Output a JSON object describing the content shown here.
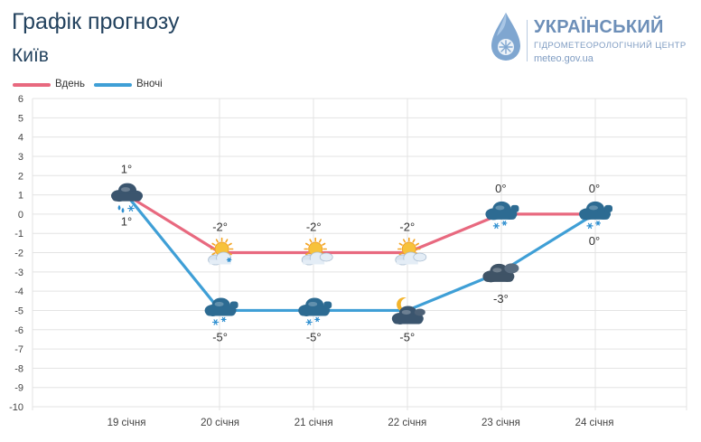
{
  "header": {
    "title": "Графік прогнозу",
    "city": "Київ"
  },
  "logo": {
    "line1": "УКРАЇНСЬКИЙ",
    "line2": "ГІДРОМЕТЕОРОЛОГІЧНИЙ ЦЕНТР",
    "line3": "meteo.gov.ua"
  },
  "legend": {
    "items": [
      {
        "label": "Вдень",
        "color": "#e8697f"
      },
      {
        "label": "Вночі",
        "color": "#3f9fd6"
      }
    ]
  },
  "chart_data": {
    "type": "line",
    "categories": [
      "19 січня",
      "20 січня",
      "21 січня",
      "22 січня",
      "23 січня",
      "24 січня"
    ],
    "ylim": [
      -10,
      6
    ],
    "yticks": [
      6,
      5,
      4,
      3,
      2,
      1,
      0,
      -1,
      -2,
      -3,
      -4,
      -5,
      -6,
      -7,
      -8,
      -9,
      -10
    ],
    "grid": true,
    "legend_position": "top-left",
    "series": [
      {
        "name": "Вдень",
        "color": "#e8697f",
        "values": [
          1,
          -2,
          -2,
          -2,
          0,
          0
        ],
        "labels": [
          "1°",
          "-2°",
          "-2°",
          "-2°",
          "0°",
          "0°"
        ],
        "icons": [
          "cloudy-rain-snow-icon",
          "partly-cloudy-snow-icon",
          "partly-cloudy-icon",
          "partly-cloudy-icon",
          "cloudy-snow-icon",
          "cloudy-snow-icon"
        ]
      },
      {
        "name": "Вночі",
        "color": "#3f9fd6",
        "values": [
          1,
          -5,
          -5,
          -5,
          -3,
          0
        ],
        "labels": [
          "1°",
          "-5°",
          "-5°",
          "-5°",
          "-3°",
          "0°"
        ],
        "icons": [
          "cloudy-rain-snow-icon",
          "cloudy-snow-icon",
          "cloudy-snow-icon",
          "moon-cloudy-icon",
          "overcast-night-icon",
          "cloudy-snow-icon"
        ]
      }
    ]
  }
}
